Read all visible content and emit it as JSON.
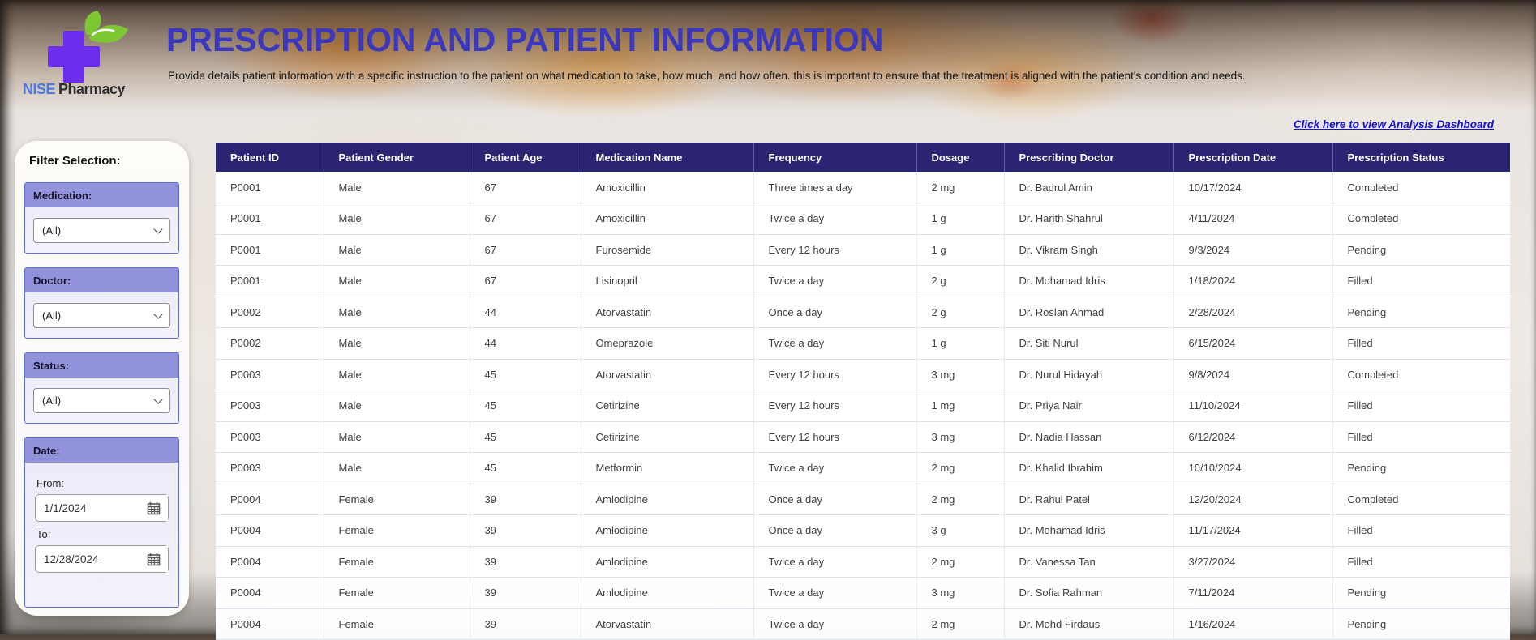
{
  "brand": {
    "name_primary": "NISE",
    "name_secondary": "Pharmacy"
  },
  "header": {
    "title": "PRESCRIPTION AND PATIENT INFORMATION",
    "subtitle": "Provide details patient information with a specific instruction to the patient on what medication to take, how much, and how often. this is important to ensure that the treatment is aligned with the patient's condition and needs."
  },
  "nav": {
    "dashboard_link": "Click here to view Analysis Dashboard"
  },
  "filters": {
    "title": "Filter Selection:",
    "medication": {
      "label": "Medication:",
      "value": "(All)"
    },
    "doctor": {
      "label": "Doctor:",
      "value": "(All)"
    },
    "status": {
      "label": "Status:",
      "value": "(All)"
    },
    "date": {
      "label": "Date:",
      "from_label": "From:",
      "from_value": "1/1/2024",
      "to_label": "To:",
      "to_value": "12/28/2024"
    }
  },
  "icons": {
    "dropdown_chevron": "chevron-down-icon",
    "calendar": "calendar-icon",
    "logo": "pharmacy-cross-leaf-icon"
  },
  "colors": {
    "table_header_navy": "#2a2472",
    "card_header_purple": "#9191dc",
    "title_blue": "#3b38bd",
    "link_blue": "#1411d6",
    "logo_purple": "#6c2ded",
    "leaf_green": "#7dc832",
    "brand_blue": "#4b79dd"
  },
  "table": {
    "columns": [
      "Patient ID",
      "Patient Gender",
      "Patient Age",
      "Medication Name",
      "Frequency",
      "Dosage",
      "Prescribing Doctor",
      "Prescription Date",
      "Prescription Status"
    ],
    "rows": [
      [
        "P0001",
        "Male",
        "67",
        "Amoxicillin",
        "Three times a day",
        "2 mg",
        "Dr. Badrul Amin",
        "10/17/2024",
        "Completed"
      ],
      [
        "P0001",
        "Male",
        "67",
        "Amoxicillin",
        "Twice a day",
        "1 g",
        "Dr. Harith Shahrul",
        "4/11/2024",
        "Completed"
      ],
      [
        "P0001",
        "Male",
        "67",
        "Furosemide",
        "Every 12 hours",
        "1 g",
        "Dr. Vikram Singh",
        "9/3/2024",
        "Pending"
      ],
      [
        "P0001",
        "Male",
        "67",
        "Lisinopril",
        "Twice a day",
        "2 g",
        "Dr. Mohamad Idris",
        "1/18/2024",
        "Filled"
      ],
      [
        "P0002",
        "Male",
        "44",
        "Atorvastatin",
        "Once a day",
        "2 g",
        "Dr. Roslan Ahmad",
        "2/28/2024",
        "Pending"
      ],
      [
        "P0002",
        "Male",
        "44",
        "Omeprazole",
        "Twice a day",
        "1 g",
        "Dr. Siti Nurul",
        "6/15/2024",
        "Filled"
      ],
      [
        "P0003",
        "Male",
        "45",
        "Atorvastatin",
        "Every 12 hours",
        "3 mg",
        "Dr. Nurul Hidayah",
        "9/8/2024",
        "Completed"
      ],
      [
        "P0003",
        "Male",
        "45",
        "Cetirizine",
        "Every 12 hours",
        "1 mg",
        "Dr. Priya Nair",
        "11/10/2024",
        "Filled"
      ],
      [
        "P0003",
        "Male",
        "45",
        "Cetirizine",
        "Every 12 hours",
        "3 mg",
        "Dr. Nadia Hassan",
        "6/12/2024",
        "Filled"
      ],
      [
        "P0003",
        "Male",
        "45",
        "Metformin",
        "Twice a day",
        "2 mg",
        "Dr. Khalid Ibrahim",
        "10/10/2024",
        "Pending"
      ],
      [
        "P0004",
        "Female",
        "39",
        "Amlodipine",
        "Once a day",
        "2 mg",
        "Dr. Rahul Patel",
        "12/20/2024",
        "Completed"
      ],
      [
        "P0004",
        "Female",
        "39",
        "Amlodipine",
        "Once a day",
        "3 g",
        "Dr. Mohamad Idris",
        "11/17/2024",
        "Filled"
      ],
      [
        "P0004",
        "Female",
        "39",
        "Amlodipine",
        "Twice a day",
        "2 mg",
        "Dr. Vanessa Tan",
        "3/27/2024",
        "Filled"
      ],
      [
        "P0004",
        "Female",
        "39",
        "Amlodipine",
        "Twice a day",
        "3 mg",
        "Dr. Sofia Rahman",
        "7/11/2024",
        "Pending"
      ],
      [
        "P0004",
        "Female",
        "39",
        "Atorvastatin",
        "Twice a day",
        "2 mg",
        "Dr. Mohd Firdaus",
        "1/16/2024",
        "Pending"
      ]
    ]
  }
}
